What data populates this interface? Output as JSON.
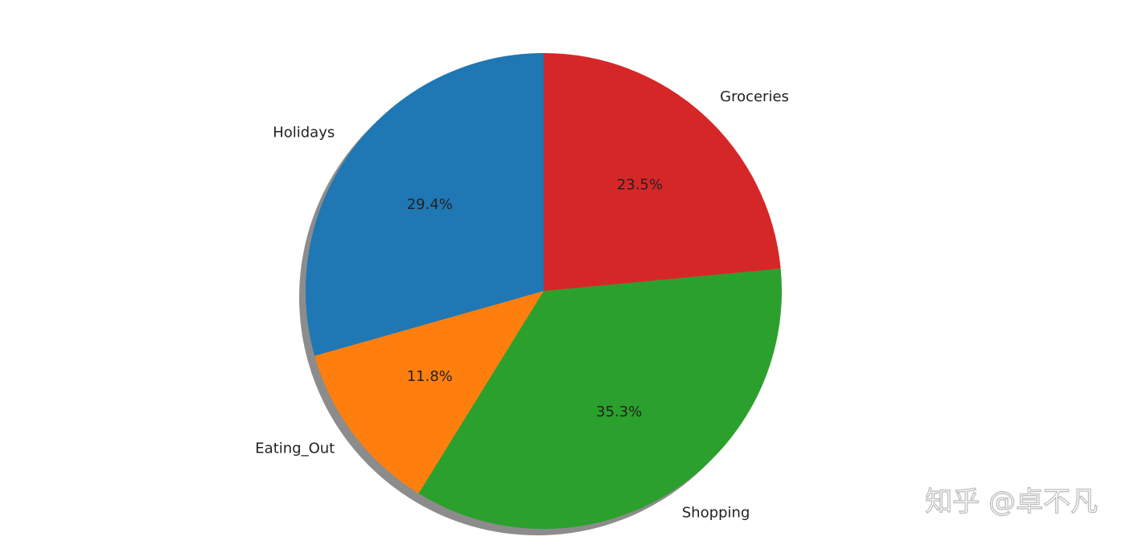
{
  "chart_data": {
    "type": "pie",
    "categories": [
      "Holidays",
      "Eating_Out",
      "Shopping",
      "Groceries"
    ],
    "values": [
      29.4,
      11.8,
      35.3,
      23.5
    ],
    "value_labels": [
      "29.4%",
      "11.8%",
      "35.3%",
      "23.5%"
    ],
    "colors": [
      "#1f77b4",
      "#ff7f0e",
      "#2ca02c",
      "#d62728"
    ],
    "start_angle": 90,
    "shadow": true
  },
  "watermark": "知乎 @卓不凡"
}
